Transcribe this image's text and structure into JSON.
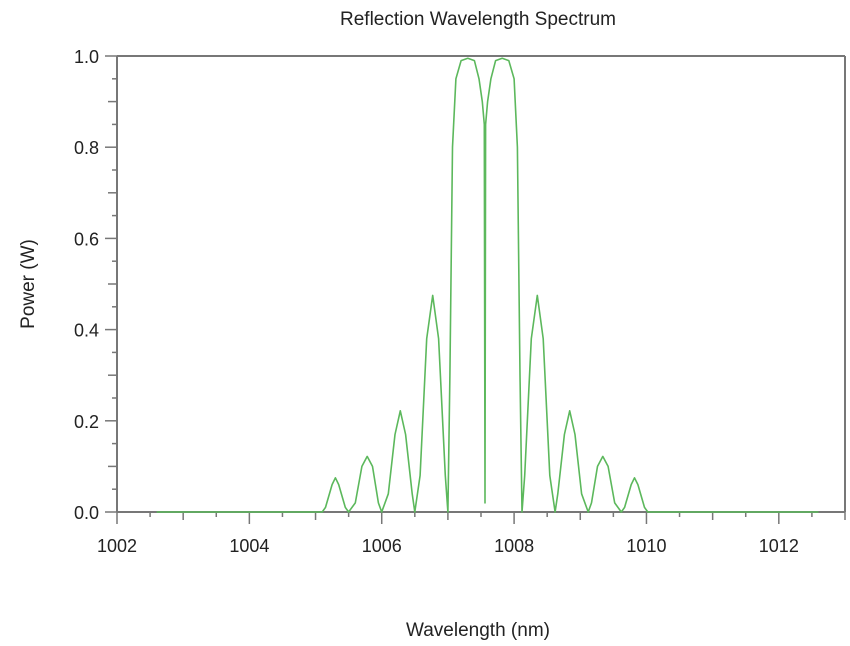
{
  "chart_data": {
    "type": "line",
    "title": "Reflection Wavelength Spectrum",
    "xlabel": "Wavelength (nm)",
    "ylabel": "Power (W)",
    "xlim": [
      1002,
      1013
    ],
    "ylim": [
      0,
      1.0
    ],
    "xticks": [
      1002,
      1004,
      1006,
      1008,
      1010,
      1012
    ],
    "xtick_labels": [
      "1002",
      "1004",
      "1006",
      "1008",
      "1010",
      "1012"
    ],
    "yticks": [
      0,
      0.2,
      0.4,
      0.6,
      0.8,
      1.0
    ],
    "ytick_labels": [
      "0.0",
      "0.2",
      "0.4",
      "0.6",
      "0.8",
      "1.0"
    ],
    "grid": false,
    "colors": {
      "line": "#5cb85c",
      "axis": "#777777"
    },
    "series": [
      {
        "x": [
          1002.6,
          1005.1,
          1005.15,
          1005.25,
          1005.3,
          1005.35,
          1005.45,
          1005.5,
          1005.6,
          1005.7,
          1005.78,
          1005.86,
          1005.95,
          1006.0,
          1006.1,
          1006.2,
          1006.28,
          1006.36,
          1006.46,
          1006.5,
          1006.58,
          1006.68,
          1006.77,
          1006.86,
          1006.96,
          1007.0,
          1007.03,
          1007.07,
          1007.12,
          1007.2,
          1007.3,
          1007.4,
          1007.47,
          1007.52,
          1007.55,
          1007.56,
          1007.57,
          1007.6,
          1007.65,
          1007.72,
          1007.82,
          1007.92,
          1008.0,
          1008.05,
          1008.09,
          1008.12,
          1008.16,
          1008.26,
          1008.35,
          1008.44,
          1008.54,
          1008.62,
          1008.66,
          1008.76,
          1008.84,
          1008.92,
          1009.02,
          1009.12,
          1009.17,
          1009.26,
          1009.34,
          1009.42,
          1009.52,
          1009.62,
          1009.67,
          1009.77,
          1009.82,
          1009.87,
          1009.97,
          1010.02,
          1012.6
        ],
        "y": [
          0,
          0,
          0.01,
          0.06,
          0.075,
          0.06,
          0.01,
          0,
          0.02,
          0.1,
          0.122,
          0.1,
          0.02,
          0,
          0.04,
          0.17,
          0.222,
          0.17,
          0.04,
          0,
          0.08,
          0.38,
          0.475,
          0.38,
          0.08,
          0,
          0.3,
          0.8,
          0.95,
          0.99,
          0.995,
          0.99,
          0.95,
          0.9,
          0.85,
          0.02,
          0.85,
          0.9,
          0.95,
          0.99,
          0.995,
          0.99,
          0.95,
          0.8,
          0.3,
          0,
          0.08,
          0.38,
          0.475,
          0.38,
          0.08,
          0,
          0.04,
          0.17,
          0.222,
          0.17,
          0.04,
          0,
          0.02,
          0.1,
          0.122,
          0.1,
          0.02,
          0,
          0.01,
          0.06,
          0.075,
          0.06,
          0.01,
          0,
          0
        ]
      }
    ]
  }
}
